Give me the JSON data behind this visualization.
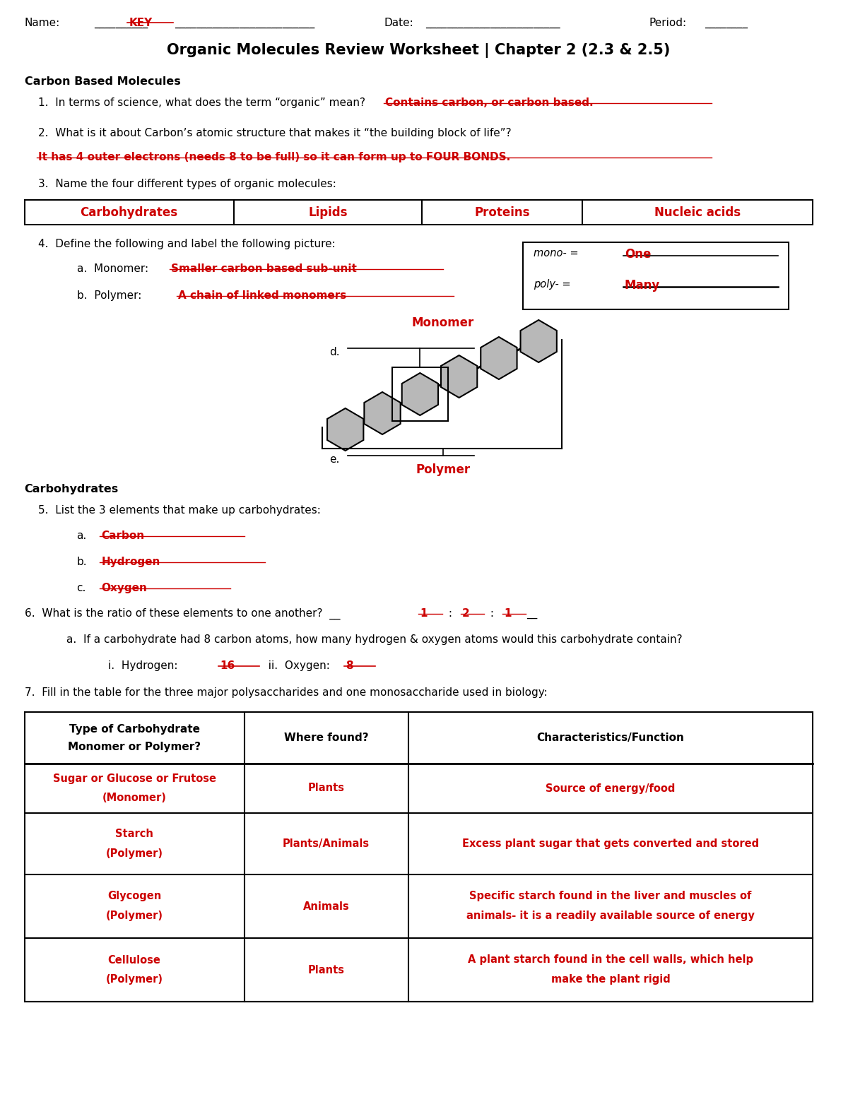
{
  "title": "Organic Molecules Review Worksheet | Chapter 2 (2.3 & 2.5)",
  "bg_color": "#ffffff",
  "black": "#000000",
  "red": "#cc0000",
  "section1_title": "Carbon Based Molecules",
  "q1": "1.  In terms of science, what does the term “organic” mean?",
  "q1_ans": "Contains carbon, or carbon based.",
  "q2": "2.  What is it about Carbon’s atomic structure that makes it “the building block of life”?",
  "q2_ans": "It has 4 outer electrons (needs 8 to be full) so it can form up to FOUR BONDS.",
  "q3": "3.  Name the four different types of organic molecules:",
  "table1_headers": [
    "Carbohydrates",
    "Lipids",
    "Proteins",
    "Nucleic acids"
  ],
  "q4": "4.  Define the following and label the following picture:",
  "q4a": "a.  Monomer:",
  "q4a_ans": "Smaller carbon based sub-unit",
  "q4b": "b.  Polymer:",
  "q4b_ans": "A chain of linked monomers",
  "mono_label": "mono- = ",
  "mono_ans": "One",
  "poly_label": "poly- = ",
  "poly_ans": "Many",
  "monomer_label": "Monomer",
  "polymer_label": "Polymer",
  "section2_title": "Carbohydrates",
  "q5": "5.  List the 3 elements that make up carbohydrates:",
  "q5a": "a.",
  "q5a_ans": "Carbon",
  "q5b": "b.",
  "q5b_ans": "Hydrogen",
  "q5c": "c.",
  "q5c_ans": "Oxygen",
  "q6_prefix": "6.  What is the ratio of these elements to one another?  __",
  "q6_ratio": [
    "1",
    "2",
    "1"
  ],
  "q6a": "a.  If a carbohydrate had 8 carbon atoms, how many hydrogen & oxygen atoms would this carbohydrate contain?",
  "q6a_i": "i.  Hydrogen:",
  "q6a_i_ans": "16",
  "q6a_ii": "  ii.  Oxygen:",
  "q6a_ii_ans": "8",
  "q7": "7.  Fill in the table for the three major polysaccharides and one monosaccharide used in biology:",
  "table2_col1_header_line1": "Type of Carbohydrate",
  "table2_col1_header_line2": "Monomer or Polymer?",
  "table2_col2_header": "Where found?",
  "table2_col3_header": "Characteristics/Function",
  "table2_rows": [
    [
      "Sugar or Glucose or Frutose\n(Monomer)",
      "Plants",
      "Source of energy/food"
    ],
    [
      "Starch\n(Polymer)",
      "Plants/Animals",
      "Excess plant sugar that gets converted and stored"
    ],
    [
      "Glycogen\n(Polymer)",
      "Animals",
      "Specific starch found in the liver and muscles of\nanimals- it is a readily available source of energy"
    ],
    [
      "Cellulose\n(Polymer)",
      "Plants",
      "A plant starch found in the cell walls, which help\nmake the plant rigid"
    ]
  ]
}
